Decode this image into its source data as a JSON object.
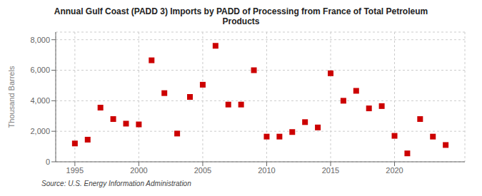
{
  "chart_data": {
    "type": "scatter",
    "title": "Annual Gulf Coast (PADD 3) Imports by PADD of Processing from France of Total Petroleum\nProducts",
    "y_label": "Thousand Barrels",
    "annotations": [
      "Source: U.S. Energy Information Administration"
    ],
    "x": [
      1995,
      1996,
      1997,
      1998,
      1999,
      2000,
      2001,
      2002,
      2003,
      2004,
      2005,
      2006,
      2007,
      2008,
      2009,
      2010,
      2011,
      2012,
      2013,
      2014,
      2015,
      2016,
      2017,
      2018,
      2019,
      2020,
      2021,
      2022,
      2023,
      2024
    ],
    "values": [
      1200,
      1450,
      3550,
      2800,
      2500,
      2450,
      6650,
      4500,
      1850,
      4250,
      5050,
      7600,
      3750,
      3750,
      6000,
      1650,
      1650,
      1950,
      2600,
      2250,
      5800,
      4000,
      4650,
      3500,
      3650,
      1700,
      550,
      2800,
      1650,
      1100
    ],
    "color": "#cc0000",
    "marker": "square",
    "xlim": [
      1993.5,
      2025.5
    ],
    "xticks": [
      1995,
      2000,
      2005,
      2010,
      2015,
      2020
    ],
    "ylim": [
      0,
      8500
    ],
    "yticks": [
      0,
      {
        "value": 2000,
        "label": "2,000"
      },
      {
        "value": 4000,
        "label": "4,000"
      },
      {
        "value": 6000,
        "label": "6,000"
      },
      {
        "value": 8000,
        "label": "8,000"
      }
    ],
    "grid": true
  }
}
